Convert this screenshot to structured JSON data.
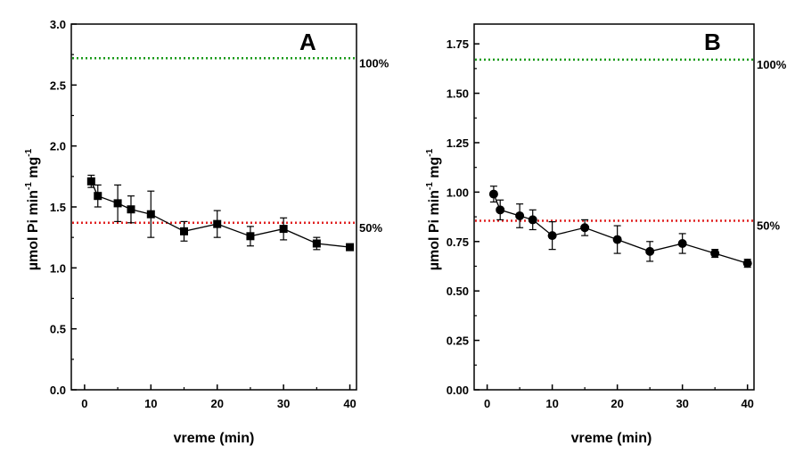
{
  "chart_data": [
    {
      "type": "line",
      "panel_label": "A",
      "xlabel": "vreme (min)",
      "ylabel": {
        "base": "µmol Pi min",
        "sup1": "-1",
        "mid": " mg",
        "sup2": "-1"
      },
      "xlim": [
        -2,
        41
      ],
      "ylim": [
        0,
        3.0
      ],
      "x_ticks": [
        0,
        10,
        20,
        30,
        40
      ],
      "y_ticks": [
        0.0,
        0.5,
        1.0,
        1.5,
        2.0,
        2.5,
        3.0
      ],
      "y_tick_labels": [
        "0.0",
        "0.5",
        "1.0",
        "1.5",
        "2.0",
        "2.5",
        "3.0"
      ],
      "marker": "square",
      "series": [
        {
          "x": [
            1,
            2,
            5,
            7,
            10,
            15,
            20,
            25,
            30,
            35,
            40
          ],
          "y": [
            1.71,
            1.59,
            1.53,
            1.48,
            1.44,
            1.3,
            1.36,
            1.26,
            1.32,
            1.2,
            1.17
          ],
          "error": [
            0.05,
            0.09,
            0.15,
            0.11,
            0.19,
            0.08,
            0.11,
            0.08,
            0.09,
            0.05,
            0.02
          ]
        }
      ],
      "reference_lines": [
        {
          "y": 2.72,
          "label": "100%",
          "color": "#1a9a1a"
        },
        {
          "y": 1.37,
          "label": "50%",
          "color": "#e02020"
        }
      ]
    },
    {
      "type": "line",
      "panel_label": "B",
      "xlabel": "vreme (min)",
      "ylabel": {
        "base": "µmol Pi min",
        "sup1": "-1",
        "mid": " mg",
        "sup2": "-1"
      },
      "xlim": [
        -2,
        41
      ],
      "ylim": [
        0,
        1.85
      ],
      "x_ticks": [
        0,
        10,
        20,
        30,
        40
      ],
      "y_ticks": [
        0.0,
        0.25,
        0.5,
        0.75,
        1.0,
        1.25,
        1.5,
        1.75
      ],
      "y_tick_labels": [
        "0.00",
        "0.25",
        "0.50",
        "0.75",
        "1.00",
        "1.25",
        "1.50",
        "1.75"
      ],
      "marker": "circle",
      "series": [
        {
          "x": [
            1,
            2,
            5,
            7,
            10,
            15,
            20,
            25,
            30,
            35,
            40
          ],
          "y": [
            0.99,
            0.91,
            0.88,
            0.86,
            0.78,
            0.82,
            0.76,
            0.7,
            0.74,
            0.69,
            0.64
          ],
          "error": [
            0.04,
            0.05,
            0.06,
            0.05,
            0.07,
            0.04,
            0.07,
            0.05,
            0.05,
            0.02,
            0.02
          ]
        }
      ],
      "reference_lines": [
        {
          "y": 1.67,
          "label": "100%",
          "color": "#1a9a1a"
        },
        {
          "y": 0.855,
          "label": "50%",
          "color": "#e02020"
        }
      ]
    }
  ]
}
